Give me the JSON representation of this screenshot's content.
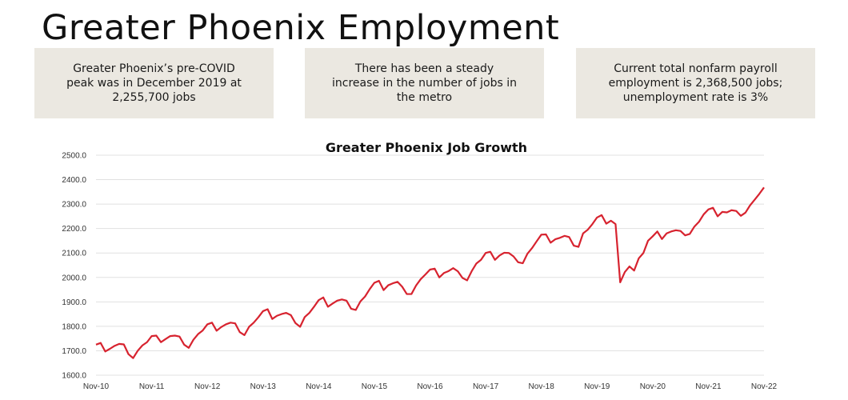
{
  "page": {
    "title": "Greater Phoenix Employment"
  },
  "boxes": [
    {
      "text": "Greater Phoenix’s pre-COVID peak was in December 2019 at 2,255,700 jobs"
    },
    {
      "text": "There has been a steady increase in the number of jobs in the metro"
    },
    {
      "text": "Current total nonfarm payroll employment is 2,368,500 jobs; unemployment rate is 3%"
    }
  ],
  "colors": {
    "line": "#d7232f",
    "box_bg": "#ebe8e1",
    "grid": "#e1e1e1"
  },
  "chart_data": {
    "type": "line",
    "title": "Greater Phoenix Job Growth",
    "xlabel": "",
    "ylabel": "",
    "ylim": [
      1600,
      2500
    ],
    "yticks": [
      "1600.0",
      "1700.0",
      "1800.0",
      "1900.0",
      "2000.0",
      "2100.0",
      "2200.0",
      "2300.0",
      "2400.0",
      "2500.0"
    ],
    "xticks": [
      "Nov-10",
      "Nov-11",
      "Nov-12",
      "Nov-13",
      "Nov-14",
      "Nov-15",
      "Nov-16",
      "Nov-17",
      "Nov-18",
      "Nov-19",
      "Nov-20",
      "Nov-21",
      "Nov-22"
    ],
    "grid": true,
    "legend": "none",
    "x_start": "Nov-10",
    "x_end": "Nov-22",
    "frequency": "monthly",
    "series": [
      {
        "values": [
          1725,
          1732,
          1697,
          1708,
          1720,
          1728,
          1726,
          1686,
          1670,
          1700,
          1722,
          1735,
          1760,
          1762,
          1735,
          1748,
          1760,
          1762,
          1758,
          1725,
          1712,
          1745,
          1768,
          1783,
          1808,
          1815,
          1782,
          1797,
          1808,
          1815,
          1812,
          1776,
          1764,
          1798,
          1815,
          1837,
          1862,
          1870,
          1830,
          1843,
          1850,
          1855,
          1846,
          1813,
          1798,
          1838,
          1855,
          1880,
          1907,
          1918,
          1880,
          1893,
          1905,
          1910,
          1905,
          1872,
          1867,
          1902,
          1922,
          1952,
          1978,
          1986,
          1948,
          1968,
          1976,
          1982,
          1962,
          1932,
          1932,
          1967,
          1993,
          2012,
          2032,
          2036,
          2000,
          2018,
          2026,
          2038,
          2025,
          1998,
          1988,
          2026,
          2057,
          2072,
          2100,
          2105,
          2072,
          2090,
          2101,
          2100,
          2086,
          2062,
          2058,
          2097,
          2120,
          2148,
          2175,
          2176,
          2142,
          2156,
          2162,
          2170,
          2165,
          2130,
          2125,
          2180,
          2195,
          2218,
          2245,
          2255,
          2220,
          2232,
          2218,
          1980,
          2022,
          2045,
          2028,
          2078,
          2100,
          2150,
          2168,
          2188,
          2157,
          2180,
          2188,
          2193,
          2190,
          2172,
          2178,
          2208,
          2228,
          2258,
          2278,
          2285,
          2250,
          2268,
          2266,
          2275,
          2272,
          2252,
          2265,
          2295,
          2318,
          2342,
          2368
        ]
      }
    ]
  }
}
